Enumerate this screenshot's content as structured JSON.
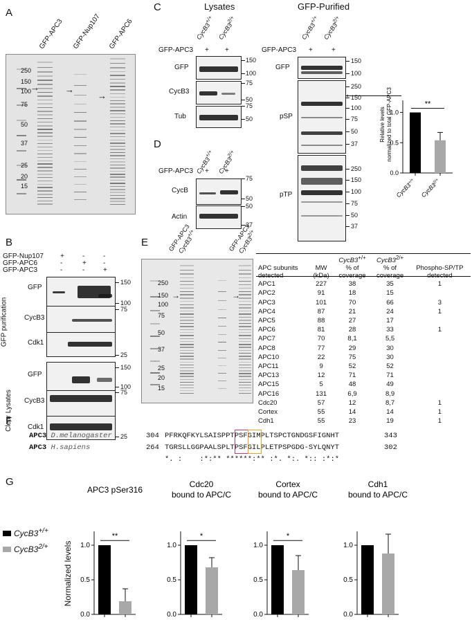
{
  "panels": {
    "A": {
      "letter": "A",
      "lanes": [
        "GFP-APC3",
        "GFP-Nup107",
        "GFP-APC6"
      ],
      "markers": [
        "250",
        "150",
        "100",
        "75",
        "50",
        "37",
        "25",
        "20",
        "15"
      ],
      "arrows": [
        "→",
        "→",
        "→"
      ]
    },
    "B": {
      "letter": "B",
      "rows": [
        {
          "label": "GFP-Nup107",
          "signs": [
            "+",
            "-",
            "-"
          ]
        },
        {
          "label": "GFP-APC6",
          "signs": [
            "-",
            "+",
            "-"
          ]
        },
        {
          "label": "GFP-APC3",
          "signs": [
            "-",
            "-",
            "+"
          ]
        }
      ],
      "group1": "GFP purification",
      "group2": "Clear Lysates",
      "blots1": [
        "GFP",
        "CycB3",
        "Cdk1"
      ],
      "blots2": [
        "GFP",
        "CycB3",
        "Cdk1"
      ],
      "mw1": [
        "150",
        "100",
        "75",
        "25"
      ],
      "mw2": [
        "150",
        "100",
        "75",
        "25"
      ]
    },
    "C": {
      "letter": "C",
      "title_lysates": "Lysates",
      "title_purified": "GFP-Purified",
      "genotypes": [
        "CycB3",
        "+/+",
        "CycB3",
        "2/+"
      ],
      "row_label": "GFP-APC3",
      "plus": "+",
      "lys_blots": [
        "GFP",
        "CycB3",
        "Tub"
      ],
      "lys_mw": [
        "150",
        "100",
        "75",
        "50",
        "75",
        "50"
      ],
      "pur_blots": [
        "GFP",
        "pSP",
        "pTP"
      ],
      "pur_mw_gfp": [
        "150",
        "100"
      ],
      "pur_mw_psp": [
        "250",
        "150",
        "100",
        "75",
        "50",
        "37"
      ],
      "pur_mw_ptp": [
        "250",
        "150",
        "100",
        "75",
        "50",
        "37"
      ],
      "arrow": "←"
    },
    "C_chart": {
      "ylabel": "Relative levels normalized to total GFP-APC3",
      "sig": "**"
    },
    "D": {
      "letter": "D",
      "row_label": "GFP-APC3",
      "plus": "+",
      "blots": [
        "CycB",
        "Actin"
      ],
      "mw": [
        "75",
        "50",
        "50",
        "37"
      ]
    },
    "E": {
      "letter": "E",
      "lanes": [
        "GFP-APC3",
        "CycB3",
        "+/+",
        "GFP-APC3",
        "CycB3",
        "2/+"
      ],
      "markers": [
        "250",
        "150",
        "100",
        "75",
        "50",
        "37",
        "25",
        "20",
        "15"
      ],
      "arrow": "→",
      "table": {
        "headers": [
          "APC subunits detected",
          "MW (kDa)",
          "CycB3+/+ % of coverage",
          "CycB3 2/+ % of coverage",
          "Phospho-SP/TP detected"
        ],
        "h_geno1": "CycB3",
        "h_geno1_sup": "+/+",
        "h_geno2": "CycB3",
        "h_geno2_sup": "2/+",
        "h_col1": "APC subunits",
        "h_col1b": "detected",
        "h_col2": "MW",
        "h_col2b": "(kDa)",
        "h_col3a": "% of",
        "h_col3b": "coverage",
        "h_col5": "Phospho-SP/TP",
        "h_col5b": "detected",
        "rows": [
          [
            "APC1",
            "227",
            "38",
            "35",
            "1"
          ],
          [
            "APC2",
            "91",
            "18",
            "15",
            ""
          ],
          [
            "APC3",
            "101",
            "70",
            "66",
            "3"
          ],
          [
            "APC4",
            "87",
            "21",
            "24",
            "1"
          ],
          [
            "APC5",
            "88",
            "27",
            "17",
            ""
          ],
          [
            "APC6",
            "81",
            "28",
            "33",
            "1"
          ],
          [
            "APC7",
            "70",
            "8,1",
            "5,5",
            ""
          ],
          [
            "APC8",
            "77",
            "29",
            "30",
            ""
          ],
          [
            "APC10",
            "22",
            "75",
            "30",
            ""
          ],
          [
            "APC11",
            "9",
            "52",
            "52",
            ""
          ],
          [
            "APC13",
            "12",
            "71",
            "71",
            ""
          ],
          [
            "APC15",
            "5",
            "48",
            "49",
            ""
          ],
          [
            "APC16",
            "131",
            "6,9",
            "8,9",
            ""
          ],
          [
            "Cdc20",
            "57",
            "12",
            "8,7",
            "1"
          ],
          [
            "Cortex",
            "55",
            "14",
            "14",
            "1"
          ],
          [
            "Cdh1",
            "55",
            "23",
            "19",
            "1"
          ]
        ]
      }
    },
    "F": {
      "letter": "F",
      "rows": [
        {
          "prot": "APC3",
          "species": "D.melanogaster",
          "start": "304",
          "seq": "PFRKQFKYLSAISPPTPSFGIMPLTSPCTGNDGSFIGNHT",
          "end": "343"
        },
        {
          "prot": "APC3",
          "species": "H.sapiens",
          "start": "264",
          "seq": "TGRSLLGGPAALSPLTPSFGILPLETPSPGDG-SYLQNYT",
          "end": "302"
        }
      ],
      "conservation": "*. :    :*:** ******:** :*. *:. *:: :*:*"
    },
    "G": {
      "letter": "G",
      "legend": [
        {
          "name": "CycB3",
          "sup": "+/+",
          "color": "#000000"
        },
        {
          "name": "CycB3",
          "sup": "2/+",
          "color": "#a8a8a8"
        }
      ],
      "ylabel": "Normalized levels"
    }
  },
  "colors": {
    "wt": "#000000",
    "mut": "#a8a8a8",
    "box1": "#d6336c",
    "box2": "#f0a020"
  },
  "chart_data": [
    {
      "type": "bar",
      "categories": [
        "CycB3+/+",
        "CycB3 2/+"
      ],
      "values": [
        1.0,
        0.54
      ],
      "errors": [
        0,
        0.13
      ],
      "ylabel": "Relative levels normalized to total GFP-APC3",
      "yticks": [
        "0.0",
        "0.5",
        "1.0"
      ],
      "ylim": [
        0,
        1.2
      ],
      "sig": "**"
    },
    {
      "type": "bar",
      "title": "APC3 pSer316",
      "categories": [
        "CycB3+/+",
        "CycB3 2/+"
      ],
      "values": [
        1.0,
        0.19
      ],
      "errors": [
        0,
        0.18
      ],
      "ylim": [
        0,
        1.2
      ],
      "yticks": [
        "0.0",
        "0.5",
        "1.0"
      ],
      "sig": "**"
    },
    {
      "type": "bar",
      "title": "Cdc20 bound to APC/C",
      "title1": "Cdc20",
      "title2": "bound to APC/C",
      "categories": [
        "CycB3+/+",
        "CycB3 2/+"
      ],
      "values": [
        1.0,
        0.68
      ],
      "errors": [
        0,
        0.14
      ],
      "ylim": [
        0,
        1.2
      ],
      "yticks": [
        "0.0",
        "0.5",
        "1.0"
      ],
      "sig": "*"
    },
    {
      "type": "bar",
      "title": "Cortex bound to APC/C",
      "title1": "Cortex",
      "title2": "bound to APC/C",
      "categories": [
        "CycB3+/+",
        "CycB3 2/+"
      ],
      "values": [
        1.0,
        0.64
      ],
      "errors": [
        0,
        0.21
      ],
      "ylim": [
        0,
        1.2
      ],
      "yticks": [
        "0.0",
        "0.5",
        "1.0"
      ],
      "sig": "*"
    },
    {
      "type": "bar",
      "title": "Cdh1 bound to APC/C",
      "title1": "Cdh1",
      "title2": "bound to APC/C",
      "categories": [
        "CycB3+/+",
        "CycB3 2/+"
      ],
      "values": [
        1.0,
        0.88
      ],
      "errors": [
        0,
        0.28
      ],
      "ylim": [
        0,
        1.2
      ],
      "yticks": [
        "0.0",
        "0.5",
        "1.0"
      ],
      "sig": ""
    }
  ]
}
